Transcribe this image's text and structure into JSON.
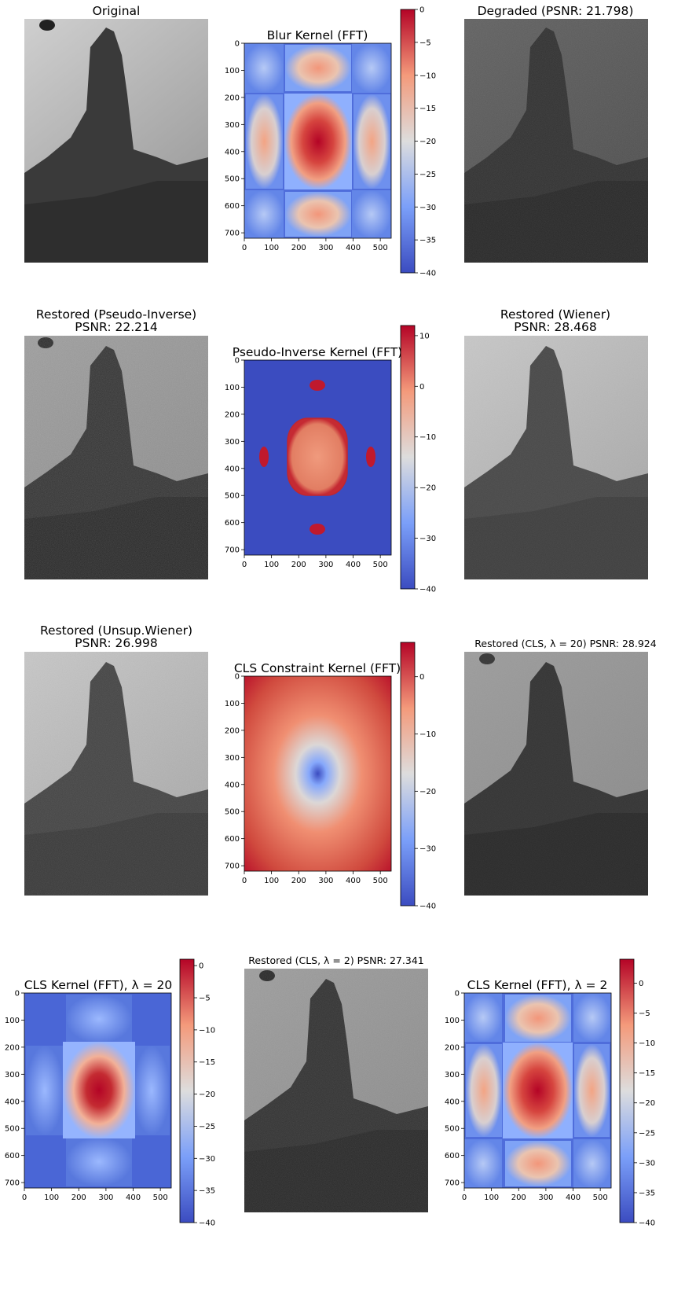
{
  "figure": {
    "colorbar_ticks_main": [
      0,
      -5,
      -10,
      -15,
      -20,
      -25,
      -30,
      -35,
      -40
    ],
    "colorbar_ticks_coarse": [
      10,
      0,
      -10,
      -20,
      -30,
      -40
    ],
    "colorbar_ticks_cls": [
      0,
      -10,
      -20,
      -30,
      -40
    ],
    "colormap": "coolwarm"
  },
  "chart_data": [
    {
      "type": "image",
      "title": "Original",
      "cmap": "gray"
    },
    {
      "type": "heatmap",
      "title": "Blur Kernel (FFT)",
      "cmap": "coolwarm",
      "xticks": [
        0,
        100,
        200,
        300,
        400,
        500
      ],
      "yticks": [
        0,
        100,
        200,
        300,
        400,
        500,
        600,
        700
      ],
      "xlim": [
        0,
        540
      ],
      "ylim": [
        720,
        0
      ],
      "colorbar": [
        -40,
        0
      ]
    },
    {
      "type": "image",
      "title": "Degraded (PSNR: 21.798)",
      "cmap": "gray"
    },
    {
      "type": "image",
      "title_line1": "Restored (Pseudo-Inverse)",
      "title_line2": "PSNR: 22.214",
      "cmap": "gray"
    },
    {
      "type": "heatmap",
      "title": "Pseudo-Inverse Kernel (FFT)",
      "cmap": "coolwarm",
      "xticks": [
        0,
        100,
        200,
        300,
        400,
        500
      ],
      "yticks": [
        0,
        100,
        200,
        300,
        400,
        500,
        600,
        700
      ],
      "xlim": [
        0,
        540
      ],
      "ylim": [
        720,
        0
      ],
      "colorbar": [
        -40,
        12
      ]
    },
    {
      "type": "image",
      "title_line1": "Restored (Wiener)",
      "title_line2": "PSNR: 28.468",
      "cmap": "gray"
    },
    {
      "type": "image",
      "title_line1": "Restored (Unsup.Wiener)",
      "title_line2": "PSNR: 26.998",
      "cmap": "gray"
    },
    {
      "type": "heatmap",
      "title": "CLS Constraint Kernel (FFT)",
      "cmap": "coolwarm",
      "xticks": [
        0,
        100,
        200,
        300,
        400,
        500
      ],
      "yticks": [
        0,
        100,
        200,
        300,
        400,
        500,
        600,
        700
      ],
      "xlim": [
        0,
        540
      ],
      "ylim": [
        720,
        0
      ],
      "colorbar": [
        -40,
        6
      ]
    },
    {
      "type": "image",
      "title": "Restored (CLS, λ = 20) PSNR: 28.924",
      "cmap": "gray"
    },
    {
      "type": "heatmap",
      "title": "CLS Kernel (FFT), λ = 20",
      "cmap": "coolwarm",
      "xticks": [
        0,
        100,
        200,
        300,
        400,
        500
      ],
      "yticks": [
        0,
        100,
        200,
        300,
        400,
        500,
        600,
        700
      ],
      "xlim": [
        0,
        540
      ],
      "ylim": [
        720,
        0
      ],
      "colorbar": [
        -40,
        1
      ]
    },
    {
      "type": "image",
      "title": "Restored (CLS, λ = 2) PSNR: 27.341",
      "cmap": "gray"
    },
    {
      "type": "heatmap",
      "title": "CLS Kernel (FFT), λ = 2",
      "cmap": "coolwarm",
      "xticks": [
        0,
        100,
        200,
        300,
        400,
        500
      ],
      "yticks": [
        0,
        100,
        200,
        300,
        400,
        500,
        600,
        700
      ],
      "xlim": [
        0,
        540
      ],
      "ylim": [
        720,
        0
      ],
      "colorbar": [
        -40,
        4
      ]
    }
  ]
}
